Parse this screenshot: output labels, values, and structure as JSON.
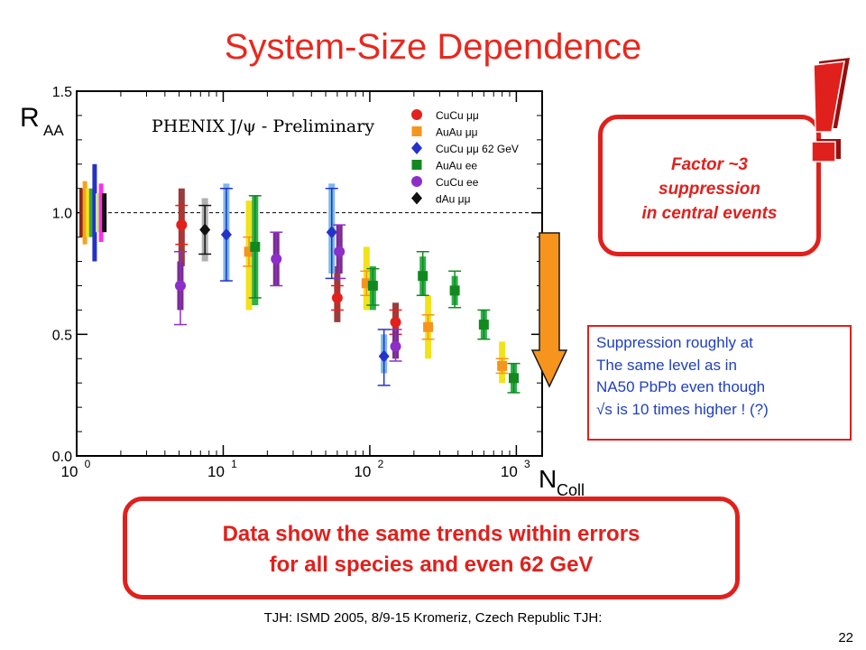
{
  "slide": {
    "title": "System-Size Dependence",
    "footer": "TJH: ISMD 2005, 8/9-15 Kromeriz, Czech Republic TJH:",
    "page_number": "22"
  },
  "callouts": {
    "factor": [
      "Factor ~3",
      "suppression",
      "in central events"
    ],
    "note": [
      "Suppression roughly at",
      "The same level as in",
      "NA50 PbPb even though",
      "√s is 10 times higher ! (?)"
    ],
    "conclusion": [
      "Data show the same trends within errors",
      "for all species and even 62 GeV"
    ]
  },
  "colors": {
    "accent_red": "#e0201c",
    "note_blue": "#1f3fbf",
    "arrow_fill": "#f7941d"
  },
  "chart_data": {
    "type": "scatter",
    "title": "PHENIX J/ψ - Preliminary",
    "xlabel": "N",
    "xlabel_sub": "Coll",
    "ylabel": "R",
    "ylabel_sub": "AA",
    "x_scale": "log",
    "xlim": [
      1,
      1500
    ],
    "ylim": [
      0,
      1.5
    ],
    "y_ticks": [
      "0.0",
      "0.5",
      "1.0",
      "1.5"
    ],
    "x_ticks": [
      {
        "value": 1,
        "base": "10",
        "exp": "0"
      },
      {
        "value": 10,
        "base": "10",
        "exp": "1"
      },
      {
        "value": 100,
        "base": "10",
        "exp": "2"
      },
      {
        "value": 1000,
        "base": "10",
        "exp": "3"
      }
    ],
    "reference_line": 1.0,
    "normalization_bands": [
      {
        "color": "#8b2a1e",
        "y_low": 0.9,
        "y_high": 1.1
      },
      {
        "color": "#f7a21b",
        "y_low": 0.87,
        "y_high": 1.13
      },
      {
        "color": "#f2e21a",
        "y_low": 0.9,
        "y_high": 1.1
      },
      {
        "color": "#3aa640",
        "y_low": 0.9,
        "y_high": 1.1
      },
      {
        "color": "#2532c8",
        "y_low": 0.8,
        "y_high": 1.2
      },
      {
        "color": "#c5e88f",
        "y_low": 0.92,
        "y_high": 1.08
      },
      {
        "color": "#ff2fe6",
        "y_low": 0.88,
        "y_high": 1.12
      },
      {
        "color": "#111111",
        "y_low": 0.92,
        "y_high": 1.08
      }
    ],
    "series": [
      {
        "name": "CuCu μμ",
        "marker": "circle",
        "color": "#e3211c",
        "sys_color": "#9b3b3b",
        "points": [
          {
            "x": 5.2,
            "y": 0.95,
            "stat_low": 0.87,
            "stat_high": 1.03,
            "sys_low": 0.78,
            "sys_high": 1.1
          },
          {
            "x": 60,
            "y": 0.65,
            "stat_low": 0.6,
            "stat_high": 0.7,
            "sys_low": 0.55,
            "sys_high": 0.78
          },
          {
            "x": 150,
            "y": 0.55,
            "stat_low": 0.5,
            "stat_high": 0.6,
            "sys_low": 0.46,
            "sys_high": 0.63
          }
        ]
      },
      {
        "name": "AuAu μμ",
        "marker": "square",
        "color": "#f7941d",
        "sys_color": "#f2e21a",
        "points": [
          {
            "x": 15,
            "y": 0.84,
            "stat_low": 0.78,
            "stat_high": 0.9,
            "sys_low": 0.6,
            "sys_high": 1.05
          },
          {
            "x": 95,
            "y": 0.71,
            "stat_low": 0.66,
            "stat_high": 0.76,
            "sys_low": 0.6,
            "sys_high": 0.86
          },
          {
            "x": 250,
            "y": 0.53,
            "stat_low": 0.48,
            "stat_high": 0.58,
            "sys_low": 0.4,
            "sys_high": 0.66
          },
          {
            "x": 800,
            "y": 0.37,
            "stat_low": 0.34,
            "stat_high": 0.4,
            "sys_low": 0.3,
            "sys_high": 0.47
          }
        ]
      },
      {
        "name": "CuCu μμ 62 GeV",
        "marker": "diamond",
        "color": "#2532c8",
        "sys_color": "#7ab8e8",
        "points": [
          {
            "x": 10.5,
            "y": 0.91,
            "stat_low": 0.72,
            "stat_high": 1.1,
            "sys_low": 0.72,
            "sys_high": 1.12
          },
          {
            "x": 55,
            "y": 0.92,
            "stat_low": 0.73,
            "stat_high": 1.1,
            "sys_low": 0.75,
            "sys_high": 1.12
          },
          {
            "x": 125,
            "y": 0.41,
            "stat_low": 0.29,
            "stat_high": 0.52,
            "sys_low": 0.34,
            "sys_high": 0.5
          }
        ]
      },
      {
        "name": "AuAu ee",
        "marker": "square",
        "color": "#12891f",
        "sys_color": "#2db04b",
        "points": [
          {
            "x": 16.5,
            "y": 0.86,
            "stat_low": 0.65,
            "stat_high": 1.07,
            "sys_low": 0.62,
            "sys_high": 1.07
          },
          {
            "x": 105,
            "y": 0.7,
            "stat_low": 0.62,
            "stat_high": 0.77,
            "sys_low": 0.6,
            "sys_high": 0.78
          },
          {
            "x": 230,
            "y": 0.74,
            "stat_low": 0.66,
            "stat_high": 0.84,
            "sys_low": 0.66,
            "sys_high": 0.82
          },
          {
            "x": 380,
            "y": 0.68,
            "stat_low": 0.61,
            "stat_high": 0.76,
            "sys_low": 0.62,
            "sys_high": 0.74
          },
          {
            "x": 600,
            "y": 0.54,
            "stat_low": 0.48,
            "stat_high": 0.6,
            "sys_low": 0.48,
            "sys_high": 0.6
          },
          {
            "x": 960,
            "y": 0.32,
            "stat_low": 0.26,
            "stat_high": 0.38,
            "sys_low": 0.26,
            "sys_high": 0.38
          }
        ]
      },
      {
        "name": "CuCu ee",
        "marker": "circle",
        "color": "#8d2ec9",
        "sys_color": "#7a2e8a",
        "points": [
          {
            "x": 5.1,
            "y": 0.7,
            "stat_low": 0.54,
            "stat_high": 0.84,
            "sys_low": 0.6,
            "sys_high": 0.8
          },
          {
            "x": 23,
            "y": 0.81,
            "stat_low": 0.7,
            "stat_high": 0.92,
            "sys_low": 0.7,
            "sys_high": 0.92
          },
          {
            "x": 62,
            "y": 0.84,
            "stat_low": 0.73,
            "stat_high": 0.95,
            "sys_low": 0.75,
            "sys_high": 0.95
          },
          {
            "x": 150,
            "y": 0.45,
            "stat_low": 0.39,
            "stat_high": 0.52,
            "sys_low": 0.4,
            "sys_high": 0.52
          }
        ]
      },
      {
        "name": "dAu μμ",
        "marker": "diamond",
        "color": "#111111",
        "sys_color": "#b0b0b0",
        "points": [
          {
            "x": 7.5,
            "y": 0.93,
            "stat_low": 0.83,
            "stat_high": 1.03,
            "sys_low": 0.8,
            "sys_high": 1.06
          }
        ]
      }
    ],
    "legend_position": "top-right"
  }
}
